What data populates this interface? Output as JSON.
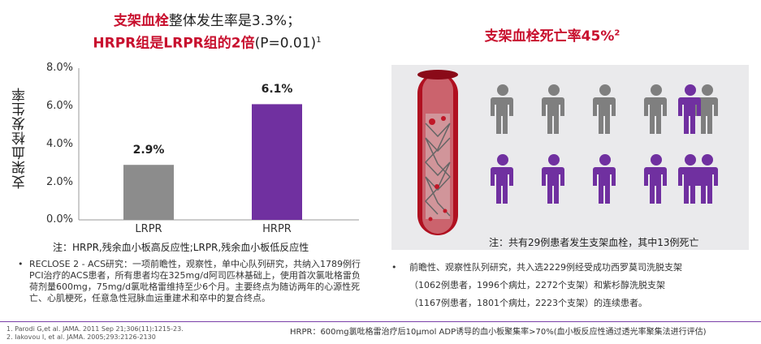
{
  "left_title": {
    "line1_red": "支架血栓",
    "line1_rest": "整体发生率是3.3%；",
    "line2_red": "HRPR组是LRPR组的2倍",
    "line2_rest": "(P=0.01)",
    "line2_sup": "1"
  },
  "right_title": {
    "text": "支架血栓死亡率45%",
    "sup": "2"
  },
  "chart_data": {
    "type": "bar",
    "categories": [
      "LRPR",
      "HRPR"
    ],
    "values": [
      2.9,
      6.1
    ],
    "data_labels": [
      "2.9%",
      "6.1%"
    ],
    "ylabel": "支架血栓发生率",
    "ylim": [
      0,
      8
    ],
    "yticks": [
      "0.0%",
      "2.0%",
      "4.0%",
      "6.0%",
      "8.0%"
    ],
    "colors": [
      "#8c8c8c",
      "#7030a0"
    ],
    "grid": false
  },
  "left_note": "注：HRPR,残余血小板高反应性;LRPR,残余血小板低反应性",
  "left_bullet": "RECLOSE 2 - ACS研究：一项前瞻性，观察性，单中心队列研究，共纳入1789例行PCI治疗的ACS患者，所有患者均在325mg/d阿司匹林基础上，使用首次氯吡格雷负荷剂量600mg，75mg/d氯吡格雷维持至少6个月。主要终点为随访两年的心源性死亡、心肌梗死，任意急性冠脉血运重建术和卒中的复合终点。",
  "right_caption": "注：共有29例患者发生支架血栓，其中13例死亡",
  "right_bullet_lines": [
    "前瞻性、观察性队列研究，共入选2229例经受成功西罗莫司洗脱支架",
    "（1062例患者，1996个病灶，2272个支架）和紫杉醇洗脱支架",
    "（1167例患者，1801个病灶，2223个支架）的连续患者。"
  ],
  "references": [
    "1.    Parodi G,et al. JAMA. 2011 Sep 21;306(11):1215-23.",
    "2.    Iakovou I, et al. JAMA. 2005;293:2126-2130"
  ],
  "hprp_definition": "HRPR：600mg氯吡格雷治疗后10μmol ADP诱导的血小板聚集率>70%(血小板反应性通过透光率聚集法进行评估)",
  "icons": {
    "gray_count": 6,
    "purple_count": 6,
    "gray_color": "#7f7f7f",
    "purple_color": "#7030a0"
  }
}
